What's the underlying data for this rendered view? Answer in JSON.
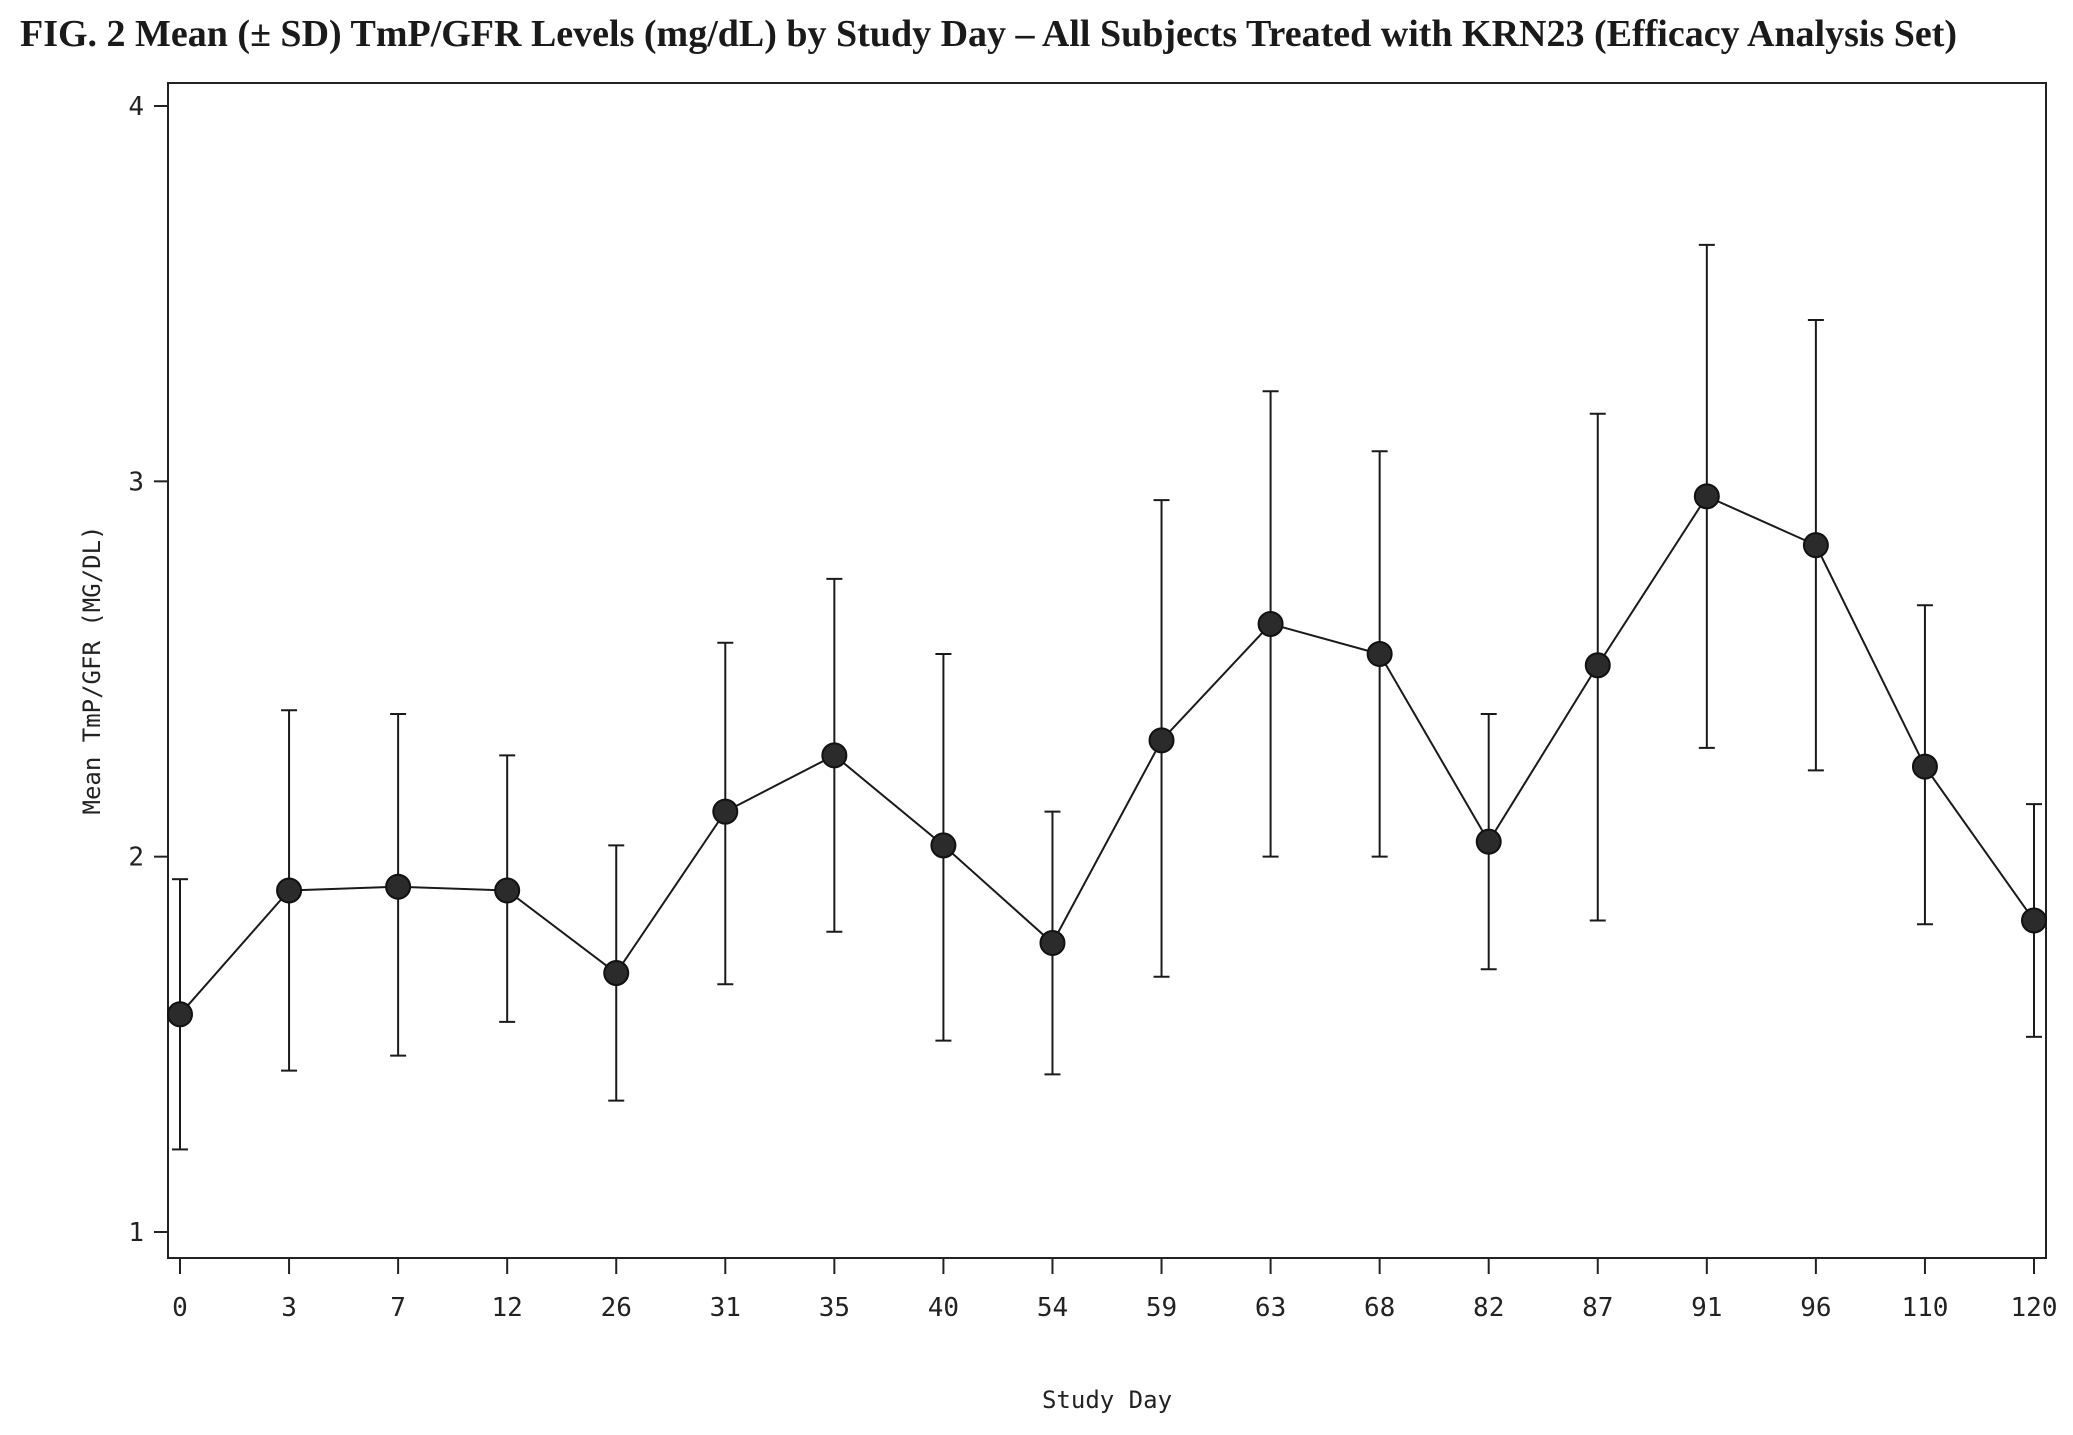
{
  "figure": {
    "title": "FIG. 2 Mean (± SD) TmP/GFR Levels (mg/dL) by Study Day – All Subjects Treated with KRN23 (Efficacy Analysis Set)"
  },
  "chart_data": {
    "type": "line",
    "title": "FIG. 2 Mean (± SD) TmP/GFR Levels (mg/dL) by Study Day – All Subjects Treated with KRN23 (Efficacy Analysis Set)",
    "xlabel": "Study Day",
    "ylabel": "Mean TmP/GFR (MG/DL)",
    "x_axis_type": "categorical",
    "categories": [
      "0",
      "3",
      "7",
      "12",
      "26",
      "31",
      "35",
      "40",
      "54",
      "59",
      "63",
      "68",
      "82",
      "87",
      "91",
      "96",
      "110",
      "120"
    ],
    "ylim": [
      1,
      4
    ],
    "yticks": [
      1,
      2,
      3,
      4
    ],
    "grid": false,
    "legend": "none",
    "series": [
      {
        "values": [
          1.58,
          1.91,
          1.92,
          1.91,
          1.69,
          2.12,
          2.27,
          2.03,
          1.77,
          2.31,
          2.62,
          2.54,
          2.04,
          2.51,
          2.96,
          2.83,
          2.24,
          1.83
        ],
        "error_low": [
          1.22,
          1.43,
          1.47,
          1.56,
          1.35,
          1.66,
          1.8,
          1.51,
          1.42,
          1.68,
          2.0,
          2.0,
          1.7,
          1.83,
          2.29,
          2.23,
          1.82,
          1.52
        ],
        "error_high": [
          1.94,
          2.39,
          2.38,
          2.27,
          2.03,
          2.57,
          2.74,
          2.54,
          2.12,
          2.95,
          3.24,
          3.08,
          2.38,
          3.18,
          3.63,
          3.43,
          2.67,
          2.14
        ],
        "marker": "filled-circle",
        "color": "#1a1a1a"
      }
    ]
  }
}
